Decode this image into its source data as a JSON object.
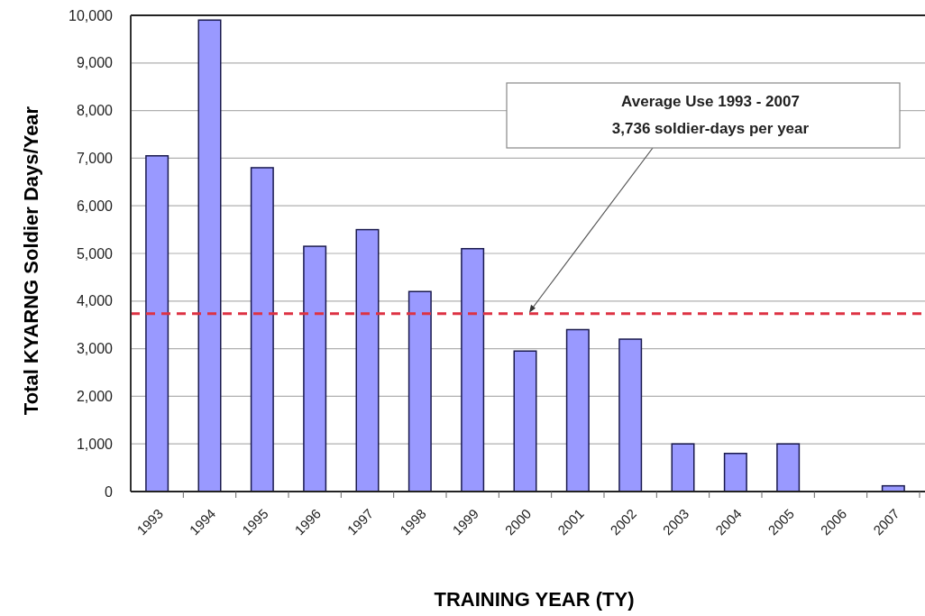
{
  "chart_data": {
    "type": "bar",
    "xlabel": "TRAINING YEAR (TY)",
    "ylabel": "Total KYARNG Soldier Days/Year",
    "categories": [
      "1993",
      "1994",
      "1995",
      "1996",
      "1997",
      "1998",
      "1999",
      "2000",
      "2001",
      "2002",
      "2003",
      "2004",
      "2005",
      "2006",
      "2007"
    ],
    "values": [
      7050,
      9900,
      6800,
      5150,
      5500,
      4200,
      5100,
      2950,
      3400,
      3200,
      1000,
      800,
      1000,
      0,
      120
    ],
    "color": "#9999ff",
    "ylim": [
      0,
      10000
    ],
    "yticks": [
      {
        "value": 0,
        "label": "0"
      },
      {
        "value": 1000,
        "label": "1,000"
      },
      {
        "value": 2000,
        "label": "2,000"
      },
      {
        "value": 3000,
        "label": "3,000"
      },
      {
        "value": 4000,
        "label": "4,000"
      },
      {
        "value": 5000,
        "label": "5,000"
      },
      {
        "value": 6000,
        "label": "6,000"
      },
      {
        "value": 7000,
        "label": "7,000"
      },
      {
        "value": 8000,
        "label": "8,000"
      },
      {
        "value": 9000,
        "label": "9,000"
      },
      {
        "value": 10000,
        "label": "10,000"
      }
    ],
    "grid": "y",
    "ref_lines": [
      {
        "axis": "y",
        "value": 3736,
        "label": "Average Use 1993 - 2007\n3,736 soldier-days per year",
        "color": "#dd3344",
        "line_style": "dashed"
      }
    ]
  }
}
